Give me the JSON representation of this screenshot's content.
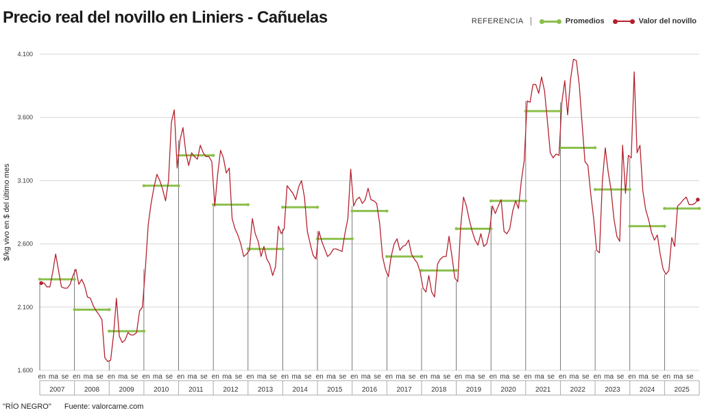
{
  "header": {
    "title": "Precio real del novillo en Liniers - Cañuelas",
    "legend_ref_label": "REFERENCIA",
    "legend_avg_label": "Promedios",
    "legend_price_label": "Valor del novillo"
  },
  "footer": {
    "credit": "\"RÍO NEGRO\"",
    "source": "Fuente: valorcarne.com"
  },
  "colors": {
    "avg": "#8bbf4a",
    "price": "#b3212e",
    "grid": "#d4d4d4",
    "axis": "#888888"
  },
  "chart_data": {
    "type": "line",
    "title": "Precio real del novillo en Liniers - Cañuelas",
    "ylabel": "$/kg vivo en $ del último mes",
    "xlabel": "",
    "ylim": [
      1600,
      4100
    ],
    "yticks": [
      1600,
      2100,
      2600,
      3100,
      3600,
      4100
    ],
    "ytick_labels": [
      "1.600",
      "2.100",
      "2.600",
      "3.100",
      "3.600",
      "4.100"
    ],
    "grid": true,
    "legend_position": "top-right",
    "month_tick_labels": [
      "en",
      "ma",
      "se"
    ],
    "years": [
      "2007",
      "2008",
      "2009",
      "2010",
      "2011",
      "2012",
      "2013",
      "2014",
      "2015",
      "2016",
      "2017",
      "2018",
      "2019",
      "2020",
      "2021",
      "2022",
      "2023",
      "2024",
      "2025"
    ],
    "series": [
      {
        "name": "Valor del novillo",
        "kind": "monthly",
        "start": "2007-01",
        "values": [
          2290,
          2290,
          2260,
          2260,
          2380,
          2520,
          2390,
          2260,
          2250,
          2250,
          2280,
          2350,
          2400,
          2280,
          2320,
          2270,
          2180,
          2170,
          2110,
          2070,
          2040,
          2000,
          1700,
          1670,
          1680,
          1880,
          2170,
          1870,
          1820,
          1840,
          1900,
          1880,
          1880,
          1900,
          2070,
          2100,
          2400,
          2750,
          2920,
          3050,
          3150,
          3100,
          3030,
          2940,
          3100,
          3560,
          3660,
          3200,
          3420,
          3520,
          3320,
          3220,
          3320,
          3290,
          3270,
          3380,
          3320,
          3290,
          3290,
          3250,
          2900,
          3150,
          3340,
          3280,
          3160,
          3200,
          2800,
          2720,
          2670,
          2600,
          2500,
          2520,
          2550,
          2800,
          2680,
          2620,
          2500,
          2580,
          2480,
          2440,
          2350,
          2420,
          2740,
          2680,
          2720,
          3060,
          3030,
          3000,
          2950,
          3050,
          3100,
          2970,
          2700,
          2600,
          2510,
          2480,
          2700,
          2620,
          2560,
          2500,
          2520,
          2560,
          2560,
          2550,
          2540,
          2680,
          2800,
          3190,
          2900,
          2950,
          2970,
          2920,
          2950,
          3040,
          2950,
          2940,
          2920,
          2760,
          2500,
          2400,
          2340,
          2500,
          2600,
          2640,
          2550,
          2580,
          2590,
          2630,
          2520,
          2480,
          2450,
          2380,
          2250,
          2220,
          2350,
          2220,
          2180,
          2440,
          2480,
          2500,
          2500,
          2660,
          2500,
          2330,
          2300,
          2730,
          2970,
          2900,
          2790,
          2700,
          2630,
          2590,
          2680,
          2580,
          2600,
          2700,
          2900,
          2840,
          2900,
          2950,
          2700,
          2680,
          2720,
          2860,
          2940,
          2880,
          3100,
          3260,
          3730,
          3720,
          3860,
          3860,
          3790,
          3920,
          3810,
          3570,
          3320,
          3280,
          3310,
          3300,
          3720,
          3890,
          3620,
          3900,
          4060,
          4050,
          3860,
          3550,
          3250,
          3220,
          2990,
          2800,
          2550,
          2530,
          3100,
          3360,
          3170,
          3030,
          2800,
          2660,
          2620,
          3380,
          3000,
          3300,
          3280,
          3960,
          3320,
          3380,
          3020,
          2870,
          2790,
          2690,
          2630,
          2670,
          2520,
          2400,
          2360,
          2390,
          2650,
          2580,
          2900,
          2920,
          2950,
          2970,
          2910,
          2910,
          2920,
          2950
        ]
      },
      {
        "name": "Promedios",
        "kind": "annual",
        "values": [
          2320,
          2080,
          1910,
          3060,
          3300,
          2910,
          2560,
          2890,
          2640,
          2860,
          2500,
          2390,
          2720,
          2940,
          3650,
          3360,
          3030,
          2740,
          2880
        ]
      }
    ]
  }
}
